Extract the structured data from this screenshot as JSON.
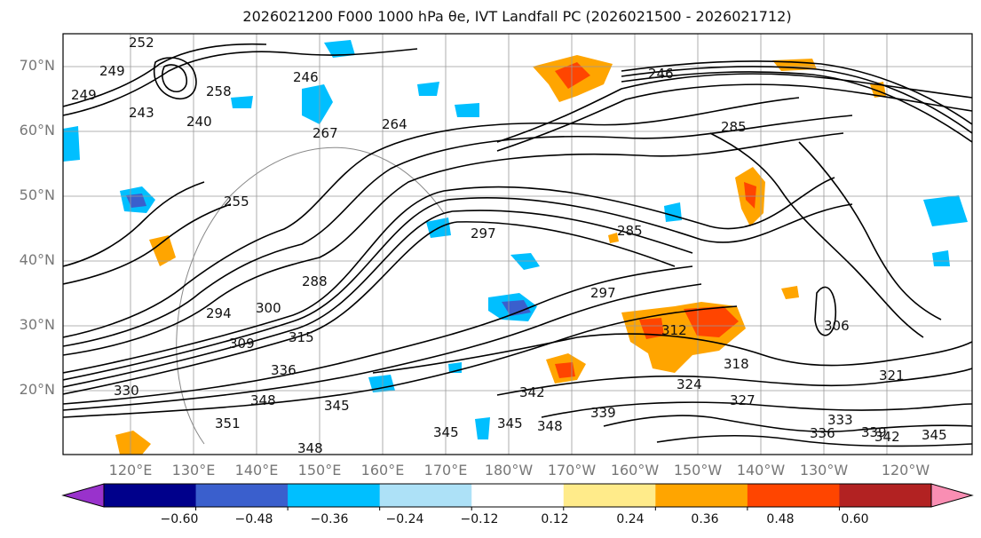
{
  "title": "2026021200 F000 1000 hPa θe, IVT Landfall PC (2026021500 - 2026021712)",
  "lat_labels": [
    "70°N",
    "60°N",
    "50°N",
    "40°N",
    "30°N",
    "20°N"
  ],
  "lon_labels": [
    "120°E",
    "130°E",
    "140°E",
    "150°E",
    "160°E",
    "170°E",
    "180°W",
    "170°W",
    "160°W",
    "150°W",
    "140°W",
    "130°W",
    "120°W"
  ],
  "colorbar": {
    "ticks": [
      "−0.60",
      "−0.48",
      "−0.36",
      "−0.24",
      "−0.12",
      "0.12",
      "0.24",
      "0.36",
      "0.48",
      "0.60"
    ],
    "colors": [
      "#9932CC",
      "#00008B",
      "#3A5FCD",
      "#00BFFF",
      "#ADE1F7",
      "#FFFFFF",
      "#FFEB8A",
      "#FFA500",
      "#FF4500",
      "#B22222",
      "#F98EB3"
    ]
  },
  "contour_labels": [
    {
      "text": "252"
    },
    {
      "text": "249"
    },
    {
      "text": "246"
    },
    {
      "text": "249"
    },
    {
      "text": "246"
    },
    {
      "text": "240"
    },
    {
      "text": "243"
    },
    {
      "text": "264"
    },
    {
      "text": "267"
    },
    {
      "text": "258"
    },
    {
      "text": "255"
    },
    {
      "text": "285"
    },
    {
      "text": "297"
    },
    {
      "text": "285"
    },
    {
      "text": "297"
    },
    {
      "text": "288"
    },
    {
      "text": "300"
    },
    {
      "text": "294"
    },
    {
      "text": "309"
    },
    {
      "text": "315"
    },
    {
      "text": "312"
    },
    {
      "text": "306"
    },
    {
      "text": "318"
    },
    {
      "text": "324"
    },
    {
      "text": "327"
    },
    {
      "text": "321"
    },
    {
      "text": "330"
    },
    {
      "text": "336"
    },
    {
      "text": "348"
    },
    {
      "text": "345"
    },
    {
      "text": "342"
    },
    {
      "text": "339"
    },
    {
      "text": "345"
    },
    {
      "text": "345"
    },
    {
      "text": "348"
    },
    {
      "text": "351"
    },
    {
      "text": "348"
    },
    {
      "text": "333"
    },
    {
      "text": "336"
    },
    {
      "text": "339"
    },
    {
      "text": "342"
    },
    {
      "text": "345"
    }
  ]
}
